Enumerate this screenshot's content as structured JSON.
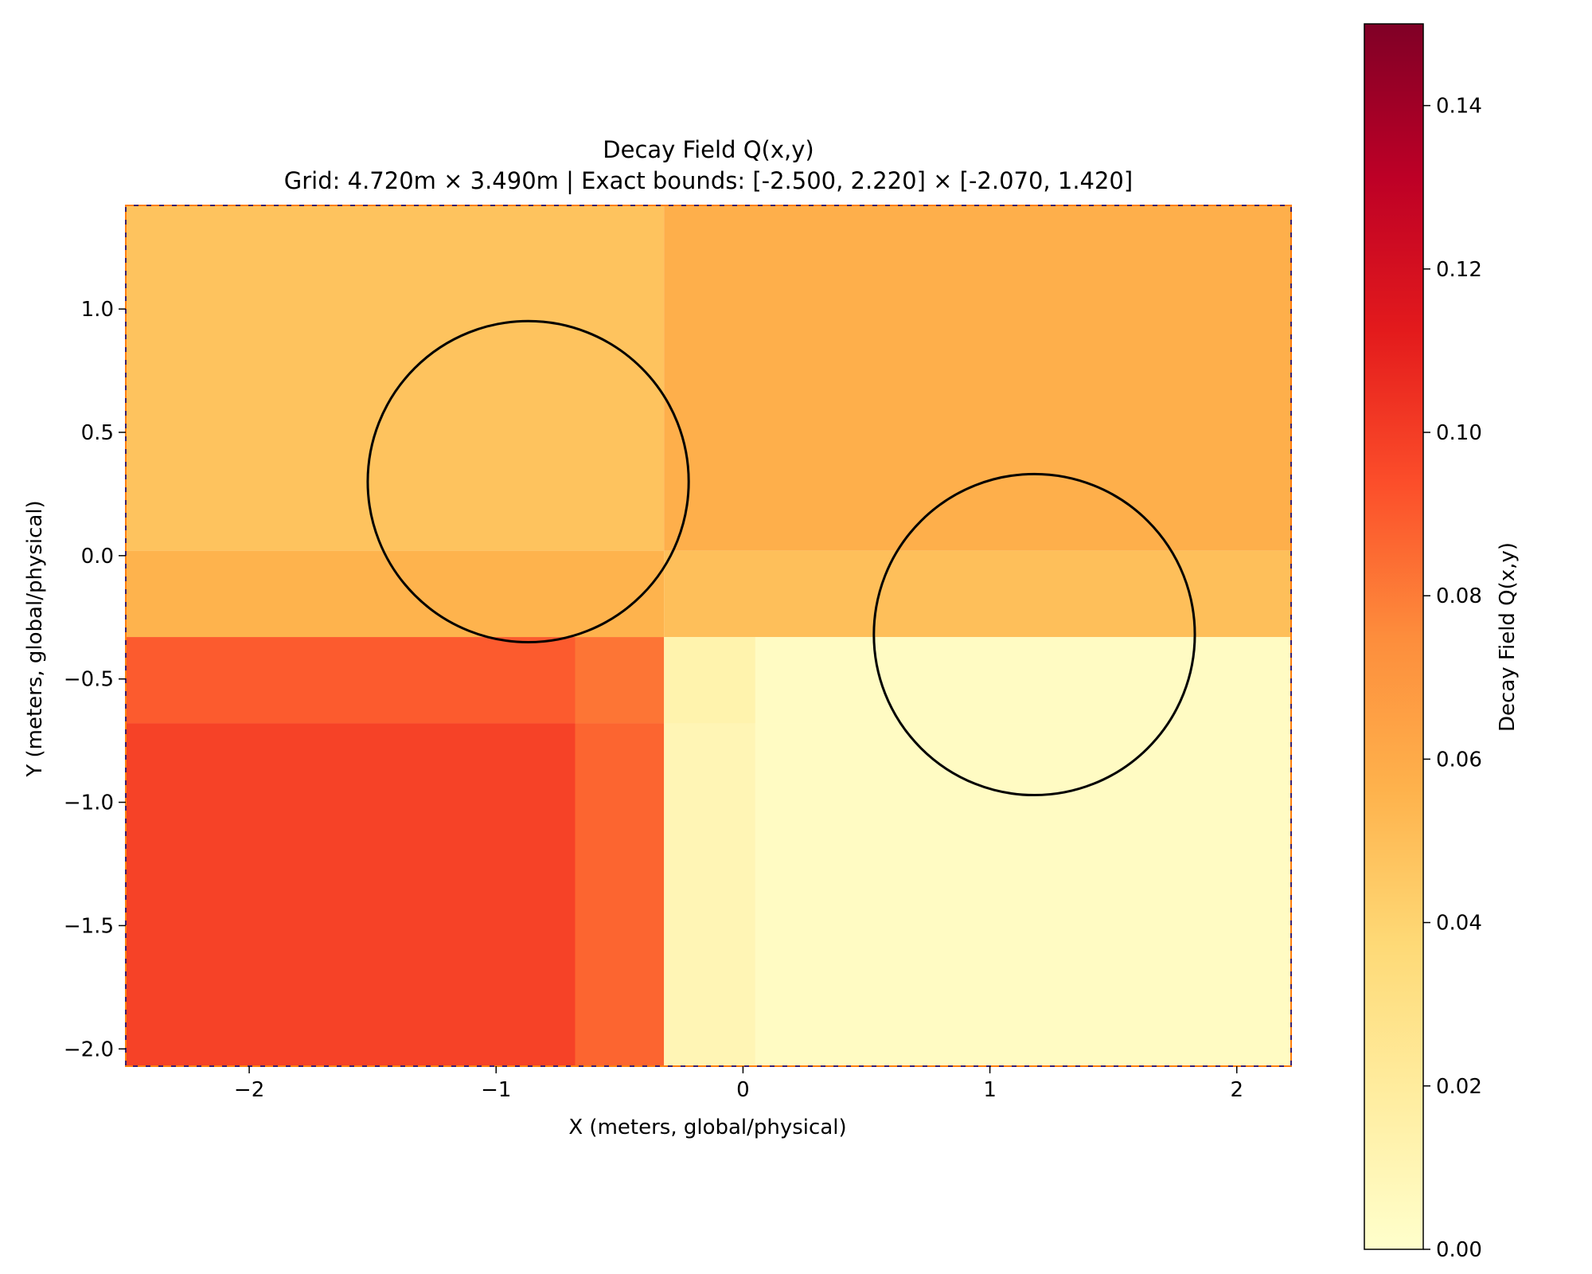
{
  "chart_data": {
    "type": "heatmap",
    "title_line1": "Decay Field Q(x,y)",
    "title_line2": "Grid: 4.720m × 3.490m | Exact bounds: [-2.500, 2.220] × [-2.070, 1.420]",
    "xlabel": "X (meters, global/physical)",
    "ylabel": "Y (meters, global/physical)",
    "xlim": [
      -2.5,
      2.22
    ],
    "ylim": [
      -2.07,
      1.42
    ],
    "xticks": [
      -2,
      -1,
      0,
      1,
      2
    ],
    "xtick_labels": [
      "−2",
      "−1",
      "0",
      "1",
      "2"
    ],
    "yticks": [
      -2.0,
      -1.5,
      -1.0,
      -0.5,
      0.0,
      0.5,
      1.0
    ],
    "ytick_labels": [
      "−2.0",
      "−1.5",
      "−1.0",
      "−0.5",
      "0.0",
      "0.5",
      "1.0"
    ],
    "colormap": "YlOrRd",
    "vmin": 0.0,
    "vmax": 0.15,
    "colorbar_label": "Decay Field Q(x,y)",
    "colorbar_ticks": [
      0.0,
      0.02,
      0.04,
      0.06,
      0.08,
      0.1,
      0.12,
      0.14
    ],
    "colorbar_tick_labels": [
      "0.00",
      "0.02",
      "0.04",
      "0.06",
      "0.08",
      "0.10",
      "0.12",
      "0.14"
    ],
    "cells": [
      {
        "x0": -2.5,
        "x1": -0.32,
        "y0": 0.02,
        "y1": 1.42,
        "value": 0.048
      },
      {
        "x0": -0.32,
        "x1": 2.22,
        "y0": 0.02,
        "y1": 1.42,
        "value": 0.058
      },
      {
        "x0": -2.5,
        "x1": -0.32,
        "y0": -0.33,
        "y1": 0.02,
        "value": 0.056
      },
      {
        "x0": -0.32,
        "x1": 2.22,
        "y0": -0.33,
        "y1": 0.02,
        "value": 0.05
      },
      {
        "x0": -2.5,
        "x1": -0.68,
        "y0": -0.68,
        "y1": -0.33,
        "value": 0.09
      },
      {
        "x0": -0.68,
        "x1": -0.32,
        "y0": -0.68,
        "y1": -0.33,
        "value": 0.082
      },
      {
        "x0": -0.32,
        "x1": 0.05,
        "y0": -0.68,
        "y1": -0.33,
        "value": 0.013
      },
      {
        "x0": 0.05,
        "x1": 2.22,
        "y0": -0.68,
        "y1": -0.33,
        "value": 0.004
      },
      {
        "x0": -2.5,
        "x1": -0.68,
        "y0": -2.07,
        "y1": -0.68,
        "value": 0.098
      },
      {
        "x0": -0.68,
        "x1": -0.32,
        "y0": -2.07,
        "y1": -0.68,
        "value": 0.087
      },
      {
        "x0": -0.32,
        "x1": 0.05,
        "y0": -2.07,
        "y1": -0.68,
        "value": 0.01
      },
      {
        "x0": 0.05,
        "x1": 2.22,
        "y0": -2.07,
        "y1": -0.68,
        "value": 0.004
      }
    ],
    "circles": [
      {
        "cx": -0.87,
        "cy": 0.3,
        "r": 0.65
      },
      {
        "cx": 1.18,
        "cy": -0.32,
        "r": 0.65
      }
    ],
    "colors": {
      "boundary_dashed": "#ff7f0e",
      "boundary_solid": "#3b1f6e",
      "circle_stroke": "#000000"
    }
  }
}
